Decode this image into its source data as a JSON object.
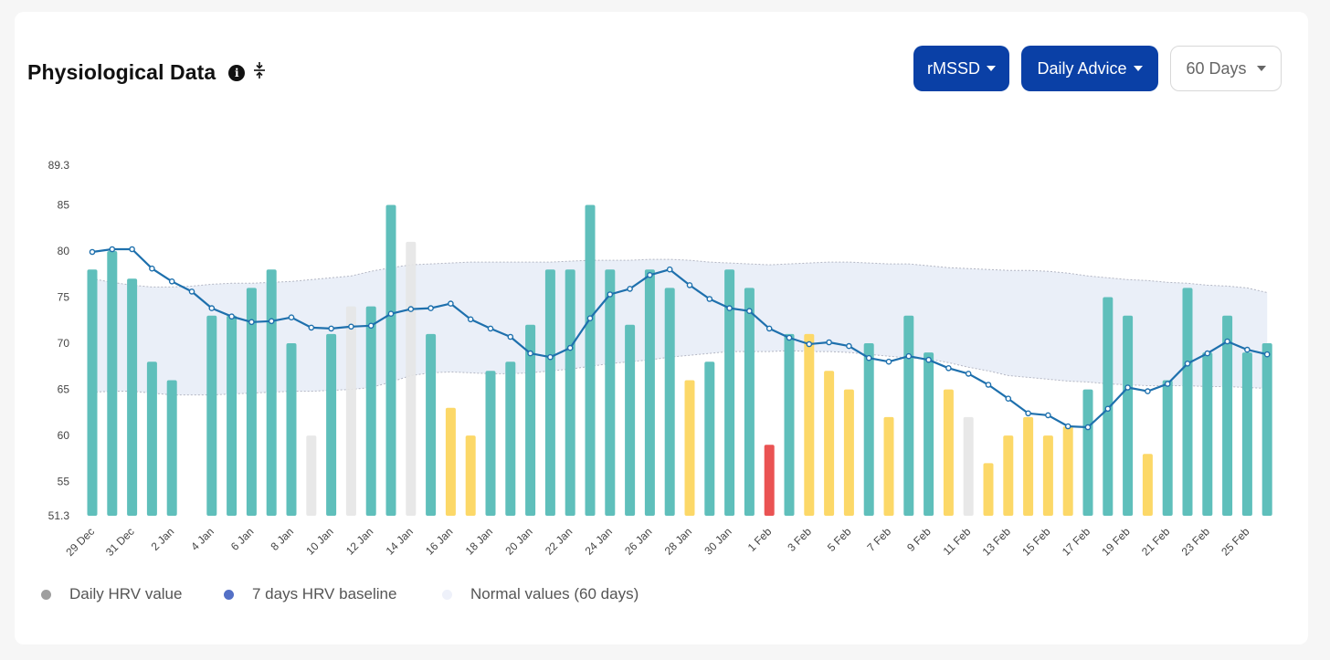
{
  "header": {
    "title": "Physiological Data",
    "info_icon": "i",
    "collapse_icon": "collapse-vertical-icon"
  },
  "controls": {
    "metric": "rMSSD",
    "advice": "Daily Advice",
    "period": "60 Days"
  },
  "legend": [
    {
      "label": "Daily HRV value",
      "color": "#9e9e9e"
    },
    {
      "label": "7 days HRV baseline",
      "color": "#5470c6"
    },
    {
      "label": "Normal values (60 days)",
      "color": "#eef1fa"
    }
  ],
  "colors": {
    "good": "#5fbfbb",
    "warning": "#fcd868",
    "alert": "#ea5353",
    "missing": "#e5e5e5",
    "baseline": "#1e70ad",
    "band": "#e9eef8"
  },
  "chart_data": {
    "type": "bar",
    "ylim": [
      51.3,
      89.3
    ],
    "y_ticks": [
      "51.3",
      "55",
      "60",
      "65",
      "70",
      "75",
      "80",
      "85",
      "89.3"
    ],
    "x_tick_labels": [
      "29 Dec",
      "31 Dec",
      "2 Jan",
      "4 Jan",
      "6 Jan",
      "8 Jan",
      "10 Jan",
      "12 Jan",
      "14 Jan",
      "16 Jan",
      "18 Jan",
      "20 Jan",
      "22 Jan",
      "24 Jan",
      "26 Jan",
      "28 Jan",
      "30 Jan",
      "1 Feb",
      "3 Feb",
      "5 Feb",
      "7 Feb",
      "9 Feb",
      "11 Feb",
      "13 Feb",
      "15 Feb",
      "17 Feb",
      "19 Feb",
      "21 Feb",
      "23 Feb",
      "25 Feb"
    ],
    "series": [
      {
        "name": "Daily HRV value",
        "values": [
          78,
          80,
          77,
          68,
          66,
          null,
          73,
          73,
          76,
          78,
          70,
          60,
          71,
          74,
          74,
          85,
          81,
          71,
          63,
          60,
          67,
          68,
          72,
          78,
          78,
          85,
          78,
          72,
          78,
          76,
          66,
          68,
          78,
          76,
          59,
          71,
          71,
          67,
          65,
          70,
          62,
          73,
          69,
          65,
          62,
          57,
          60,
          62,
          60,
          61,
          65,
          75,
          73,
          58,
          66,
          76,
          69,
          73,
          69,
          70
        ],
        "status": [
          "g",
          "g",
          "g",
          "g",
          "g",
          "n",
          "g",
          "g",
          "g",
          "g",
          "g",
          "m",
          "g",
          "m",
          "g",
          "g",
          "m",
          "g",
          "y",
          "y",
          "g",
          "g",
          "g",
          "g",
          "g",
          "g",
          "g",
          "g",
          "g",
          "g",
          "y",
          "g",
          "g",
          "g",
          "r",
          "g",
          "y",
          "y",
          "y",
          "g",
          "y",
          "g",
          "g",
          "y",
          "m",
          "y",
          "y",
          "y",
          "y",
          "y",
          "g",
          "g",
          "g",
          "y",
          "g",
          "g",
          "g",
          "g",
          "g",
          "g"
        ]
      },
      {
        "name": "7 days HRV baseline",
        "values": [
          79.9,
          80.2,
          80.2,
          78.1,
          76.7,
          75.6,
          73.8,
          72.9,
          72.3,
          72.4,
          72.8,
          71.7,
          71.6,
          71.8,
          71.9,
          73.2,
          73.7,
          73.8,
          74.3,
          72.6,
          71.6,
          70.7,
          68.9,
          68.5,
          69.5,
          72.7,
          75.3,
          75.9,
          77.4,
          78.0,
          76.3,
          74.8,
          73.8,
          73.5,
          71.6,
          70.6,
          69.9,
          70.1,
          69.7,
          68.4,
          68.0,
          68.6,
          68.2,
          67.3,
          66.7,
          65.5,
          64.0,
          62.4,
          62.2,
          61.0,
          60.9,
          62.9,
          65.2,
          64.8,
          65.6,
          67.8,
          68.9,
          70.2,
          69.3,
          68.8
        ]
      },
      {
        "name": "Normal values (60 days)",
        "upper": [
          77.0,
          76.6,
          76.3,
          76.1,
          76.1,
          76.2,
          76.4,
          76.5,
          76.5,
          76.6,
          76.7,
          76.9,
          77.1,
          77.3,
          77.8,
          78.2,
          78.5,
          78.6,
          78.7,
          78.8,
          78.8,
          78.8,
          78.8,
          78.8,
          78.9,
          79.0,
          79.0,
          79.0,
          79.1,
          79.1,
          79.0,
          78.8,
          78.7,
          78.6,
          78.5,
          78.6,
          78.7,
          78.8,
          78.8,
          78.7,
          78.6,
          78.6,
          78.4,
          78.2,
          78.1,
          78.0,
          77.9,
          77.9,
          77.8,
          77.6,
          77.3,
          77.1,
          76.9,
          76.8,
          76.6,
          76.5,
          76.3,
          76.2,
          76.0,
          75.5
        ],
        "lower": [
          64.7,
          64.8,
          64.8,
          64.6,
          64.4,
          64.4,
          64.4,
          64.5,
          64.6,
          64.7,
          64.8,
          64.8,
          64.9,
          65.0,
          65.2,
          65.8,
          66.5,
          66.8,
          66.9,
          66.8,
          66.7,
          66.7,
          66.8,
          67.0,
          67.2,
          67.5,
          67.8,
          68.0,
          68.2,
          68.5,
          68.7,
          68.9,
          69.1,
          69.1,
          69.1,
          69.2,
          69.1,
          69.1,
          69.0,
          68.8,
          68.6,
          68.4,
          68.3,
          67.9,
          67.4,
          67.0,
          66.5,
          66.3,
          66.1,
          65.9,
          65.8,
          65.6,
          65.5,
          65.4,
          65.4,
          65.4,
          65.3,
          65.3,
          65.2,
          65.1
        ]
      }
    ],
    "grid": false,
    "legend_position": "bottom-left"
  }
}
